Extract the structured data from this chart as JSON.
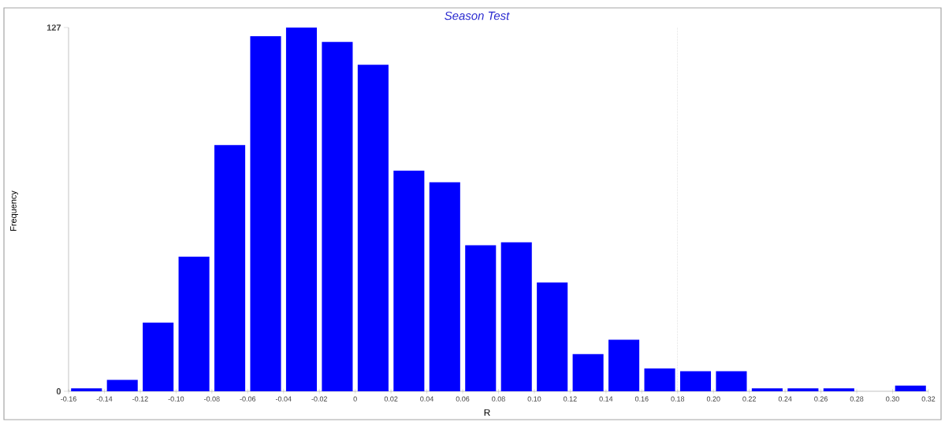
{
  "chart_data": {
    "type": "histogram",
    "title": "Season Test",
    "xlabel": "R",
    "ylabel": "Frequency",
    "bins": [
      -0.16,
      -0.14,
      -0.12,
      -0.1,
      -0.08,
      -0.06,
      -0.04,
      -0.02,
      0,
      0.02,
      0.04,
      0.06,
      0.08,
      0.1,
      0.12,
      0.14,
      0.16,
      0.18,
      0.2,
      0.22,
      0.24,
      0.26,
      0.28,
      0.3,
      0.32
    ],
    "values": [
      1,
      4,
      24,
      47,
      86,
      124,
      127,
      122,
      114,
      77,
      73,
      51,
      52,
      38,
      13,
      18,
      8,
      7,
      7,
      1,
      1,
      1,
      0,
      2
    ],
    "color": "#0000ff",
    "xlim": [
      -0.16,
      0.32
    ],
    "xticks": [
      {
        "value": -0.16,
        "label": "-0.16"
      },
      {
        "value": -0.14,
        "label": "-0.14"
      },
      {
        "value": -0.12,
        "label": "-0.12"
      },
      {
        "value": -0.1,
        "label": "-0.10"
      },
      {
        "value": -0.08,
        "label": "-0.08"
      },
      {
        "value": -0.06,
        "label": "-0.06"
      },
      {
        "value": -0.04,
        "label": "-0.04"
      },
      {
        "value": -0.02,
        "label": "-0.02"
      },
      0,
      {
        "value": 0.02,
        "label": "0.02"
      },
      {
        "value": 0.04,
        "label": "0.04"
      },
      {
        "value": 0.06,
        "label": "0.06"
      },
      {
        "value": 0.08,
        "label": "0.08"
      },
      {
        "value": 0.1,
        "label": "0.10"
      },
      {
        "value": 0.12,
        "label": "0.12"
      },
      {
        "value": 0.14,
        "label": "0.14"
      },
      {
        "value": 0.16,
        "label": "0.16"
      },
      {
        "value": 0.18,
        "label": "0.18"
      },
      {
        "value": 0.2,
        "label": "0.20"
      },
      {
        "value": 0.22,
        "label": "0.22"
      },
      {
        "value": 0.24,
        "label": "0.24"
      },
      {
        "value": 0.26,
        "label": "0.26"
      },
      {
        "value": 0.28,
        "label": "0.28"
      },
      {
        "value": 0.3,
        "label": "0.30"
      },
      {
        "value": 0.32,
        "label": "0.32"
      }
    ],
    "ylim": [
      0,
      127
    ],
    "yticks": [
      0,
      127
    ],
    "ref_lines": [
      {
        "axis": "x",
        "value": 0.18,
        "color": "#606060",
        "line_style": "dotted"
      }
    ],
    "grid": false
  }
}
